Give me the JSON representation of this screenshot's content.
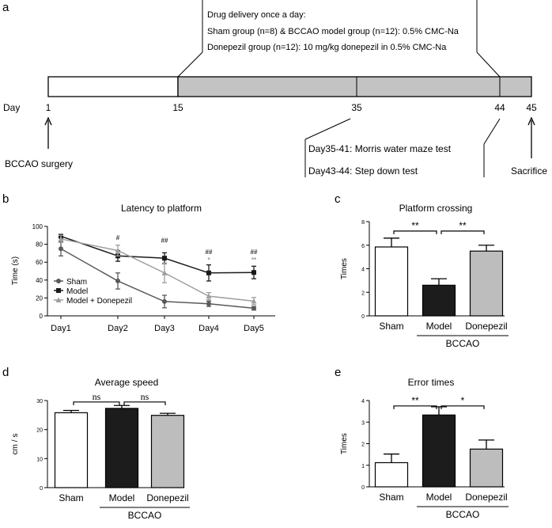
{
  "panel_letters": [
    "a",
    "b",
    "c",
    "d",
    "e"
  ],
  "timeline": {
    "drug_lines": [
      "Drug delivery once a day:",
      "Sham group (n=8) & BCCAO model group (n=12): 0.5% CMC-Na",
      "Donepezil group (n=12): 10 mg/kg donepezil in 0.5% CMC-Na"
    ],
    "day_label": "Day",
    "days": [
      1,
      15,
      35,
      44,
      45
    ],
    "day_labels": [
      "1",
      "15",
      "35",
      "44",
      "45"
    ],
    "events": [
      {
        "label": "BCCAO surgery",
        "day": 1
      },
      {
        "label": "Day35-41: Morris water maze test",
        "day": 35
      },
      {
        "label": "Day43-44: Step down test",
        "day": 44
      },
      {
        "label": "Sacrifice",
        "day": 45
      }
    ],
    "colors": {
      "unshaded": "#ffffff",
      "shaded": "#c3c3c3"
    }
  },
  "chart_data": [
    {
      "panel": "b",
      "type": "line",
      "title": "Latency to platform",
      "xlabel": "",
      "ylabel": "Time (s)",
      "categories": [
        "Day1",
        "Day2",
        "Day3",
        "Day4",
        "Day5"
      ],
      "ylim": [
        0,
        100
      ],
      "yticks": [
        0,
        20,
        40,
        60,
        80,
        100
      ],
      "legend_position": "lower-left",
      "series": [
        {
          "name": "Sham",
          "marker": "circle",
          "color": "#595959",
          "values": [
            75,
            39,
            16,
            13.5,
            8.5
          ],
          "errors": [
            8,
            9,
            7,
            3,
            2
          ]
        },
        {
          "name": "Model",
          "marker": "square",
          "color": "#1a1a1a",
          "values": [
            89,
            67,
            64.5,
            48,
            48.5
          ],
          "errors": [
            2,
            6,
            6,
            9,
            7
          ]
        },
        {
          "name": "Model + Donepezil",
          "marker": "triangle",
          "color": "#9e9e9e",
          "values": [
            86,
            73,
            48,
            22,
            16.5
          ],
          "errors": [
            4,
            6,
            11,
            4,
            4
          ]
        }
      ],
      "annotations": [
        {
          "category": "Day2",
          "text": "#",
          "y": 85,
          "color": "#333333"
        },
        {
          "category": "Day3",
          "text": "##",
          "y": 82,
          "color": "#333333"
        },
        {
          "category": "Day4",
          "text": "##",
          "y": 69,
          "color": "#333333"
        },
        {
          "category": "Day4",
          "text": "*",
          "y": 60,
          "color": "#999999"
        },
        {
          "category": "Day5",
          "text": "##",
          "y": 69,
          "color": "#333333"
        },
        {
          "category": "Day5",
          "text": "**",
          "y": 60,
          "color": "#999999"
        }
      ]
    },
    {
      "panel": "c",
      "type": "bar",
      "title": "Platform crossing",
      "xlabel": "",
      "ylabel": "Times",
      "categories": [
        "Sham",
        "Model",
        "Donepezil"
      ],
      "values": [
        5.85,
        2.6,
        5.5
      ],
      "errors": [
        0.75,
        0.55,
        0.5
      ],
      "colors": [
        "#ffffff",
        "#1c1c1c",
        "#bdbdbd"
      ],
      "ylim": [
        0,
        8
      ],
      "yticks": [
        0,
        2,
        4,
        6,
        8
      ],
      "group_label": "BCCAO",
      "significance": [
        {
          "from": 0,
          "to": 1,
          "text": "**",
          "y": 7.2
        },
        {
          "from": 1,
          "to": 2,
          "text": "**",
          "y": 7.2
        }
      ]
    },
    {
      "panel": "d",
      "type": "bar",
      "title": "Average speed",
      "xlabel": "",
      "ylabel": "cm / s",
      "categories": [
        "Sham",
        "Model",
        "Donepezil"
      ],
      "values": [
        25.8,
        27.3,
        24.9
      ],
      "errors": [
        0.8,
        1.0,
        0.7
      ],
      "colors": [
        "#ffffff",
        "#1c1c1c",
        "#bdbdbd"
      ],
      "ylim": [
        0,
        30
      ],
      "yticks": [
        0,
        10,
        20,
        30
      ],
      "group_label": "BCCAO",
      "significance": [
        {
          "from": 0,
          "to": 1,
          "text": "ns",
          "y": 29.5
        },
        {
          "from": 1,
          "to": 2,
          "text": "ns",
          "y": 29.5
        }
      ]
    },
    {
      "panel": "e",
      "type": "bar",
      "title": "Error times",
      "xlabel": "",
      "ylabel": "Times",
      "categories": [
        "Sham",
        "Model",
        "Donepezil"
      ],
      "values": [
        1.12,
        3.33,
        1.75
      ],
      "errors": [
        0.4,
        0.38,
        0.42
      ],
      "colors": [
        "#ffffff",
        "#1c1c1c",
        "#bdbdbd"
      ],
      "ylim": [
        0,
        4
      ],
      "yticks": [
        0,
        1,
        2,
        3,
        4
      ],
      "group_label": "BCCAO",
      "significance": [
        {
          "from": 0,
          "to": 1,
          "text": "**",
          "y": 3.75
        },
        {
          "from": 1,
          "to": 2,
          "text": "*",
          "y": 3.75
        }
      ]
    }
  ]
}
